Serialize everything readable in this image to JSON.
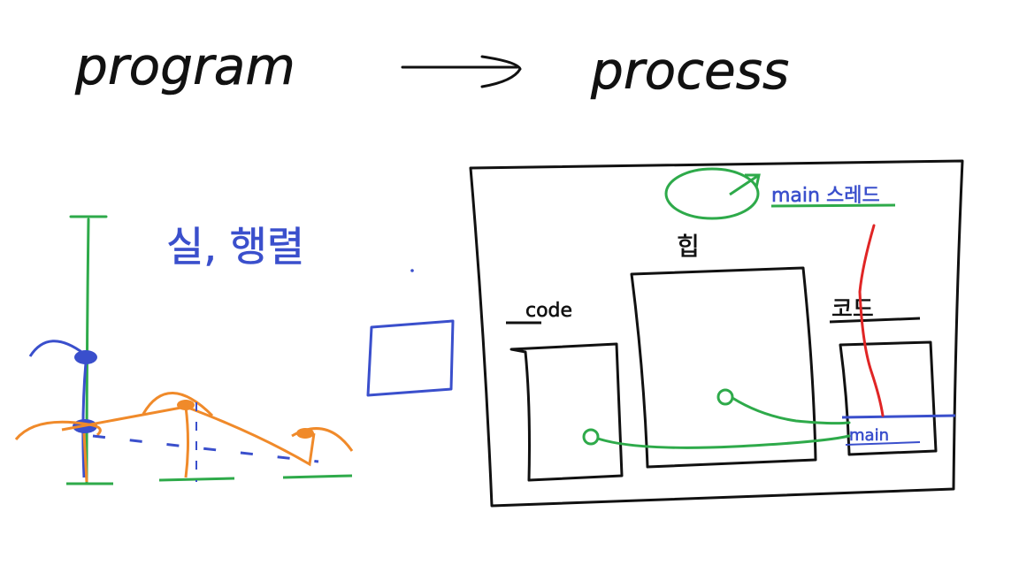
{
  "title": {
    "left": "program",
    "right": "process"
  },
  "left_note": "실, 행렬",
  "process_box": {
    "top_label": "main 스레드",
    "heap_label": "힙",
    "left_label": "code",
    "right_label": "코드",
    "main_label": "main"
  },
  "colors": {
    "black": "#111111",
    "green": "#2eaa4a",
    "blue": "#3a4fcc",
    "orange": "#f08a2a",
    "red": "#e02525"
  }
}
